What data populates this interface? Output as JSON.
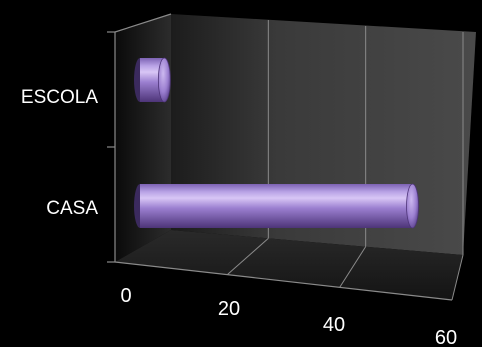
{
  "chart_data": {
    "type": "bar",
    "orientation": "horizontal",
    "style": "3d-cylinder",
    "categories": [
      "ESCOLA",
      "CASA"
    ],
    "values": [
      5,
      56
    ],
    "xlim": [
      0,
      60
    ],
    "ticks": [
      "0",
      "20",
      "40",
      "60"
    ],
    "tick_values": [
      0,
      20,
      40,
      60
    ],
    "grid": true,
    "legend": "none",
    "colors": {
      "background": "#000000",
      "bar": "#9b7fd0",
      "bar_highlight": "#d8c6f5",
      "bar_shadow": "#4d3478",
      "wall": "#3a3a3a",
      "gridline": "#8a8a8a"
    }
  }
}
